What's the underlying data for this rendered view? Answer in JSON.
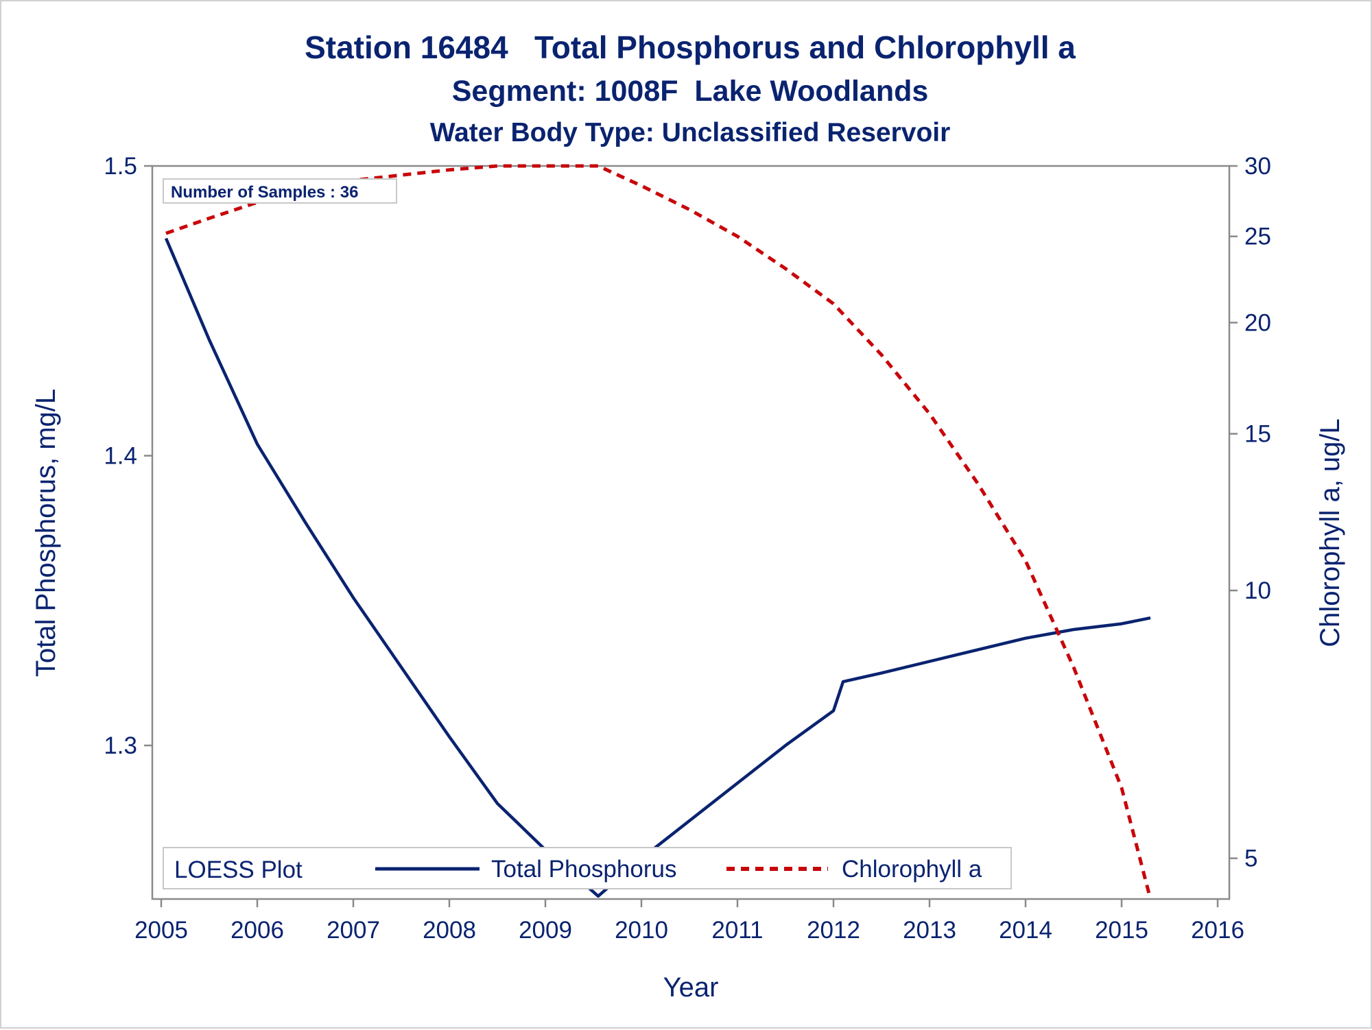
{
  "chart_data": {
    "type": "line",
    "title": "Station 16484   Total Phosphorus and Chlorophyll a",
    "subtitle": "Segment: 1008F  Lake Woodlands",
    "subtitle2": "Water Body Type: Unclassified Reservoir",
    "xlabel": "Year",
    "ylabel": "Total Phosphorus, mg/L",
    "y2label": "Chlorophyll a, ug/L",
    "xlim": [
      2005,
      2016
    ],
    "ylim": [
      1.247,
      1.5
    ],
    "y2lim": [
      4.5,
      30
    ],
    "y2scale": "log",
    "x_ticks": [
      "2005",
      "2006",
      "2007",
      "2008",
      "2009",
      "2010",
      "2011",
      "2012",
      "2013",
      "2014",
      "2015",
      "2016"
    ],
    "y_ticks": [
      "1.3",
      "1.4",
      "1.5"
    ],
    "y2_ticks": [
      "5",
      "10",
      "15",
      "20",
      "25",
      "30"
    ],
    "inset_label": "Number of Samples : 36",
    "legend": {
      "title": "LOESS Plot",
      "position": "bottom"
    },
    "colors": {
      "Total Phosphorus": "#0a2370",
      "Chlorophyll a": "#c8060a",
      "axis": "#8a8a8a"
    },
    "series": [
      {
        "name": "Total Phosphorus",
        "axis": "left",
        "style": "solid",
        "x": [
          2005.05,
          2005.5,
          2006.0,
          2006.5,
          2007.0,
          2007.5,
          2008.0,
          2008.5,
          2009.0,
          2009.55,
          2010.0,
          2010.5,
          2011.0,
          2011.5,
          2012.0,
          2012.1,
          2012.5,
          2013.0,
          2013.5,
          2014.0,
          2014.5,
          2015.0,
          2015.3
        ],
        "values": [
          1.475,
          1.44,
          1.404,
          1.377,
          1.351,
          1.327,
          1.303,
          1.28,
          1.264,
          1.248,
          1.261,
          1.274,
          1.287,
          1.3,
          1.312,
          1.322,
          1.325,
          1.329,
          1.333,
          1.337,
          1.34,
          1.342,
          1.344
        ]
      },
      {
        "name": "Chlorophyll a",
        "axis": "right",
        "style": "dashed",
        "x": [
          2005.05,
          2005.5,
          2006.0,
          2006.5,
          2007.0,
          2007.5,
          2008.0,
          2008.5,
          2009.0,
          2009.55,
          2010.0,
          2010.5,
          2011.0,
          2011.5,
          2012.0,
          2012.5,
          2013.0,
          2013.5,
          2014.0,
          2014.5,
          2015.0,
          2015.3
        ],
        "values": [
          25.2,
          26.2,
          27.3,
          28.2,
          28.9,
          29.3,
          29.7,
          30.0,
          30.0,
          30.0,
          28.5,
          26.8,
          25.0,
          23.0,
          21.0,
          18.4,
          15.8,
          13.2,
          10.8,
          8.2,
          6.0,
          4.5
        ]
      }
    ]
  }
}
